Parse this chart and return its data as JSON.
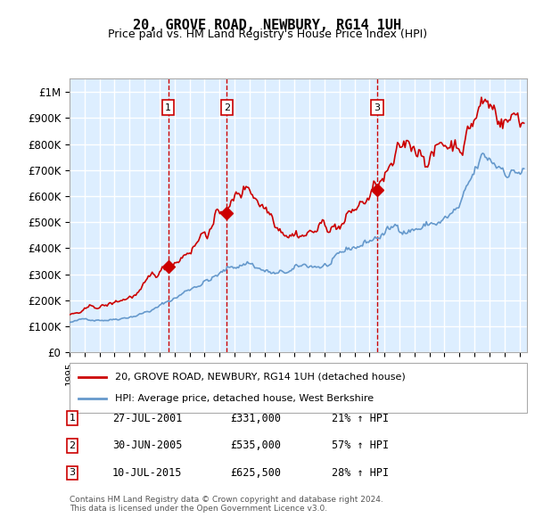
{
  "title": "20, GROVE ROAD, NEWBURY, RG14 1UH",
  "subtitle": "Price paid vs. HM Land Registry's House Price Index (HPI)",
  "xlim_start": 1995.0,
  "xlim_end": 2025.5,
  "ylim": [
    0,
    1050000
  ],
  "yticks": [
    0,
    100000,
    200000,
    300000,
    400000,
    500000,
    600000,
    700000,
    800000,
    900000,
    1000000
  ],
  "ytick_labels": [
    "£0",
    "£100K",
    "£200K",
    "£300K",
    "£400K",
    "£500K",
    "£600K",
    "£700K",
    "£800K",
    "£900K",
    "£1M"
  ],
  "purchase_dates": [
    2001.57,
    2005.49,
    2015.52
  ],
  "purchase_prices": [
    331000,
    535000,
    625500
  ],
  "purchase_labels": [
    "1",
    "2",
    "3"
  ],
  "vline_dates": [
    2001.57,
    2005.49,
    2015.52
  ],
  "legend_entries": [
    "20, GROVE ROAD, NEWBURY, RG14 1UH (detached house)",
    "HPI: Average price, detached house, West Berkshire"
  ],
  "table_rows": [
    [
      "1",
      "27-JUL-2001",
      "£331,000",
      "21% ↑ HPI"
    ],
    [
      "2",
      "30-JUN-2005",
      "£535,000",
      "57% ↑ HPI"
    ],
    [
      "3",
      "10-JUL-2015",
      "£625,500",
      "28% ↑ HPI"
    ]
  ],
  "footer": "Contains HM Land Registry data © Crown copyright and database right 2024.\nThis data is licensed under the Open Government Licence v3.0.",
  "red_color": "#cc0000",
  "blue_color": "#6699cc",
  "bg_color": "#ddeeff",
  "grid_color": "#ffffff",
  "purchase_marker_color": "#cc0000"
}
